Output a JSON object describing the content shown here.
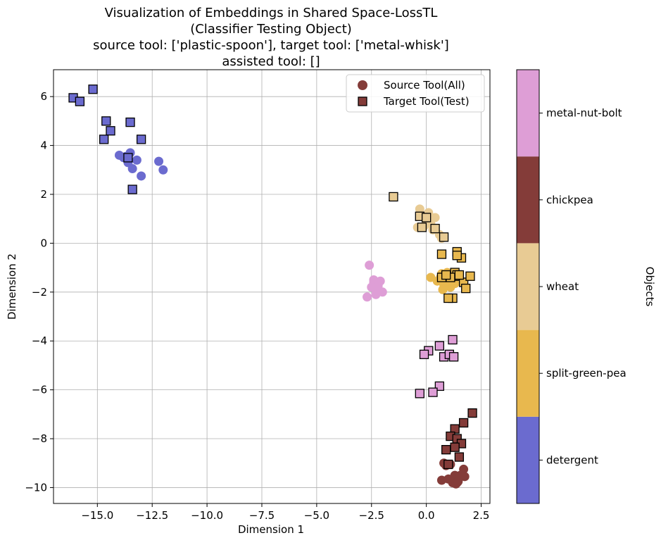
{
  "chart_data": {
    "type": "scatter",
    "title_lines": [
      "Visualization of Embeddings in Shared Space-LossTL",
      "(Classifier Testing Object)",
      "source tool: ['plastic-spoon'], target tool: ['metal-whisk']",
      "assisted tool: []"
    ],
    "xlabel": "Dimension 1",
    "ylabel": "Dimension 2",
    "xlim": [
      -17.0,
      2.9
    ],
    "ylim": [
      -10.65,
      7.1
    ],
    "xticks": [
      -15.0,
      -12.5,
      -10.0,
      -7.5,
      -5.0,
      -2.5,
      0.0,
      2.5
    ],
    "xtick_labels": [
      "−15.0",
      "−12.5",
      "−10.0",
      "−7.5",
      "−5.0",
      "−2.5",
      "0.0",
      "2.5"
    ],
    "yticks": [
      -10,
      -8,
      -6,
      -4,
      -2,
      0,
      2,
      4,
      6
    ],
    "ytick_labels": [
      "−10",
      "−8",
      "−6",
      "−4",
      "−2",
      "0",
      "2",
      "4",
      "6"
    ],
    "grid": true,
    "legend": {
      "placement": "top-right",
      "entries": [
        {
          "label": "Source Tool(All)",
          "marker": "circle"
        },
        {
          "label": "Target Tool(Test)",
          "marker": "square"
        }
      ]
    },
    "colorbar": {
      "label": "Objects",
      "classes": [
        {
          "name": "detergent",
          "color": "#6b6bcf"
        },
        {
          "name": "split-green-pea",
          "color": "#e8b84e"
        },
        {
          "name": "wheat",
          "color": "#e8cb94"
        },
        {
          "name": "chickpea",
          "color": "#843c39"
        },
        {
          "name": "metal-nut-bolt",
          "color": "#de9ed6"
        }
      ]
    },
    "series": [
      {
        "name": "Source Tool(All)",
        "marker": "circle",
        "class": "detergent",
        "x": [
          -13.5,
          -13.2,
          -13.8,
          -13.6,
          -14.0,
          -13.4,
          -13.0,
          -12.2,
          -12.0,
          -13.7
        ],
        "y": [
          3.7,
          3.4,
          3.5,
          3.3,
          3.6,
          3.05,
          2.75,
          3.35,
          3.0,
          3.55
        ]
      },
      {
        "name": "Target Tool(Test)",
        "marker": "square",
        "class": "detergent",
        "x": [
          -16.1,
          -15.8,
          -15.2,
          -14.6,
          -14.4,
          -14.7,
          -13.5,
          -13.0,
          -13.6,
          -13.4
        ],
        "y": [
          5.95,
          5.8,
          6.3,
          5.0,
          4.6,
          4.25,
          4.95,
          4.25,
          3.5,
          2.2
        ]
      },
      {
        "name": "Source Tool(All)",
        "marker": "circle",
        "class": "split-green-pea",
        "x": [
          0.2,
          0.6,
          0.8,
          1.0,
          0.7,
          0.9,
          1.2,
          0.5,
          0.75,
          1.1,
          0.85,
          1.3,
          0.65,
          0.95
        ],
        "y": [
          -1.4,
          -1.5,
          -1.7,
          -1.35,
          -1.25,
          -1.6,
          -1.45,
          -1.55,
          -1.9,
          -1.8,
          -1.3,
          -1.65,
          -1.4,
          -1.2
        ]
      },
      {
        "name": "Target Tool(Test)",
        "marker": "square",
        "class": "split-green-pea",
        "x": [
          0.7,
          1.4,
          1.6,
          1.3,
          1.5,
          1.7,
          2.0,
          1.8,
          1.2,
          1.0,
          0.7,
          1.4,
          1.1,
          0.9,
          1.5,
          1.4
        ],
        "y": [
          -0.45,
          -0.35,
          -0.6,
          -1.2,
          -1.35,
          -1.6,
          -1.35,
          -1.85,
          -2.25,
          -2.25,
          -1.4,
          -1.3,
          -1.4,
          -1.3,
          -1.3,
          -0.5
        ]
      },
      {
        "name": "Source Tool(All)",
        "marker": "circle",
        "class": "wheat",
        "x": [
          -0.3,
          0.1,
          0.4,
          0.0,
          -0.4,
          0.2,
          0.6,
          -0.1,
          0.3,
          0.7
        ],
        "y": [
          1.4,
          1.25,
          1.05,
          0.95,
          0.65,
          0.8,
          0.35,
          0.7,
          0.55,
          0.2
        ]
      },
      {
        "name": "Target Tool(Test)",
        "marker": "square",
        "class": "wheat",
        "x": [
          -1.5,
          -0.3,
          0.0,
          -0.2,
          0.4,
          0.8
        ],
        "y": [
          1.9,
          1.1,
          1.05,
          0.65,
          0.6,
          0.25
        ]
      },
      {
        "name": "Source Tool(All)",
        "marker": "circle",
        "class": "chickpea",
        "x": [
          0.8,
          0.9,
          1.1,
          1.3,
          1.5,
          1.7,
          1.75,
          1.4,
          1.2,
          0.7,
          1.0,
          1.35,
          1.55,
          1.45
        ],
        "y": [
          -9.0,
          -9.1,
          -9.05,
          -9.5,
          -9.6,
          -9.25,
          -9.55,
          -9.8,
          -9.8,
          -9.7,
          -9.65,
          -9.85,
          -9.5,
          -9.75
        ]
      },
      {
        "name": "Target Tool(Test)",
        "marker": "square",
        "class": "chickpea",
        "x": [
          2.1,
          1.7,
          1.3,
          1.1,
          1.4,
          1.6,
          1.3,
          0.9,
          1.0,
          1.5
        ],
        "y": [
          -6.95,
          -7.35,
          -7.6,
          -7.9,
          -8.0,
          -8.2,
          -8.35,
          -8.45,
          -9.05,
          -8.75
        ]
      },
      {
        "name": "Source Tool(All)",
        "marker": "circle",
        "class": "metal-nut-bolt",
        "x": [
          -2.6,
          -2.4,
          -2.3,
          -2.1,
          -2.0,
          -2.2,
          -2.5,
          -2.7,
          -2.3,
          -2.4,
          -2.2,
          -2.35
        ],
        "y": [
          -0.9,
          -1.5,
          -1.7,
          -1.55,
          -2.0,
          -1.9,
          -1.8,
          -2.2,
          -2.1,
          -1.6,
          -1.75,
          -1.85
        ]
      },
      {
        "name": "Target Tool(Test)",
        "marker": "square",
        "class": "metal-nut-bolt",
        "x": [
          1.2,
          0.6,
          0.1,
          -0.1,
          0.8,
          1.05,
          1.25,
          0.6,
          0.3,
          -0.3
        ],
        "y": [
          -3.95,
          -4.2,
          -4.4,
          -4.55,
          -4.65,
          -4.55,
          -4.65,
          -5.85,
          -6.1,
          -6.15
        ]
      }
    ]
  }
}
